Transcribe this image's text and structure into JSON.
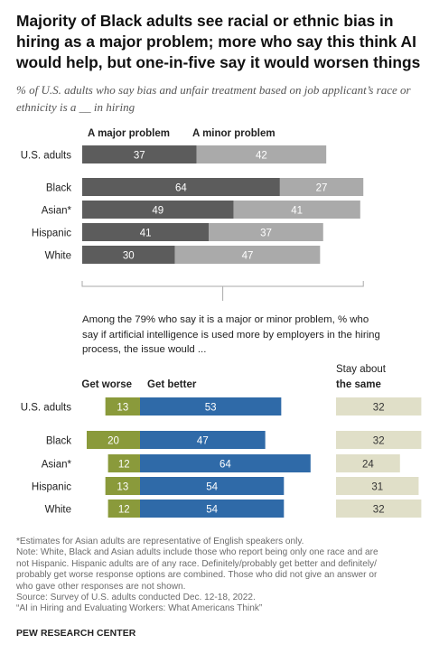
{
  "title": "Majority of Black adults see racial or ethnic bias in hiring as a major problem; more who say this think AI would help, but one-in-five say it would worsen things",
  "subtitle": "% of U.S. adults who say bias and unfair treatment based on job applicant’s race or ethnicity is a __ in hiring",
  "intro": "Among the 79% who say it is a major or minor problem, % who say if artificial intelligence is used more by employers in the hiring process, the issue would ...",
  "colors": {
    "major": "#5c5c5c",
    "minor": "#aaaaaa",
    "worse": "#8a9a3b",
    "better": "#2f6aa8",
    "same": "#e0dfc8"
  },
  "chart_data": [
    {
      "type": "bar",
      "stacked": true,
      "orientation": "horizontal",
      "categories": [
        "U.S. adults",
        "Black",
        "Asian*",
        "Hispanic",
        "White"
      ],
      "series": [
        {
          "name": "A major problem",
          "values": [
            37,
            64,
            49,
            41,
            30
          ]
        },
        {
          "name": "A minor problem",
          "values": [
            42,
            27,
            41,
            37,
            47
          ]
        }
      ]
    },
    {
      "type": "bar",
      "orientation": "horizontal",
      "diverging": true,
      "categories": [
        "U.S. adults",
        "Black",
        "Asian*",
        "Hispanic",
        "White"
      ],
      "series": [
        {
          "name": "Get worse",
          "values": [
            13,
            20,
            12,
            13,
            12
          ]
        },
        {
          "name": "Get better",
          "values": [
            53,
            47,
            64,
            54,
            54
          ]
        },
        {
          "name": "Stay about the same",
          "values": [
            32,
            32,
            24,
            31,
            32
          ]
        }
      ]
    }
  ],
  "notes": [
    "*Estimates for Asian adults are representative of English speakers only.",
    "Note: White, Black and Asian adults include those who report being only one race and are",
    "not Hispanic. Hispanic adults are of any race. Definitely/probably get better and definitely/",
    "probably get worse response options are combined. Those who did not give an answer or",
    "who gave other responses are not shown.",
    "Source: Survey of U.S. adults conducted Dec. 12-18, 2022.",
    "“AI in Hiring and Evaluating Workers: What Americans Think”"
  ],
  "brand": "PEW RESEARCH CENTER"
}
